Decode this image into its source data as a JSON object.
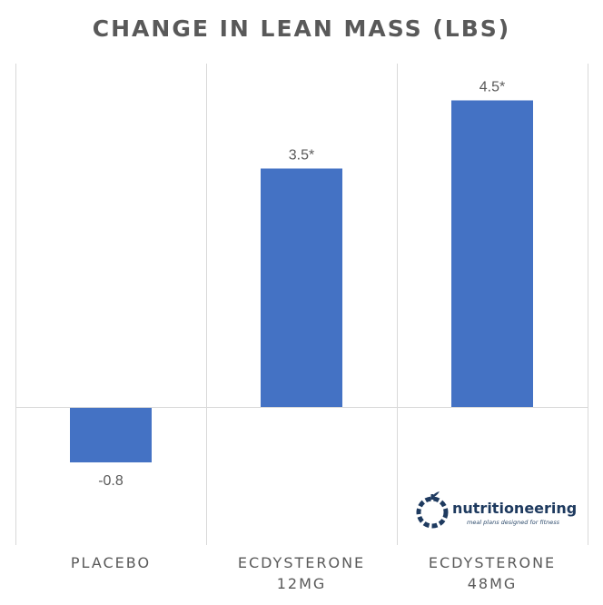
{
  "chart_data": {
    "type": "bar",
    "title": "CHANGE IN LEAN MASS (LBS)",
    "categories": [
      [
        "PLACEBO"
      ],
      [
        "ECDYSTERONE",
        "12MG"
      ],
      [
        "ECDYSTERONE",
        "48MG"
      ]
    ],
    "values": [
      -0.8,
      3.5,
      4.5
    ],
    "data_labels": [
      "-0.8",
      "3.5*",
      "4.5*"
    ],
    "bar_color": "#4472C4",
    "grid_color": "#d9d9d9",
    "text_color": "#595959",
    "ylim": [
      -2.0,
      5.0
    ],
    "grid": true,
    "legend": false
  },
  "watermark": {
    "name": "nutritioneering",
    "tagline": "meal plans designed for fitness",
    "icon": "apple-icon",
    "color": "#1e3a5f"
  }
}
